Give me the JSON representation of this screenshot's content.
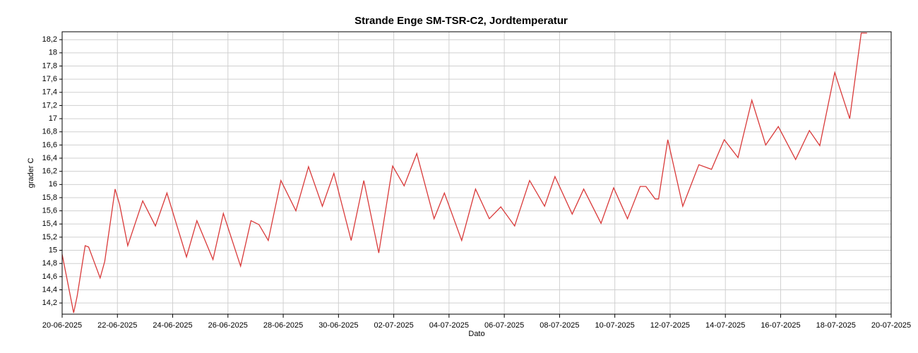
{
  "chart_data": {
    "type": "line",
    "title": "Strande Enge SM-TSR-C2, Jordtemperatur",
    "x_label": "Dato",
    "y_label": "grader C",
    "grid": true,
    "xlim": [
      "20-06-2025",
      "20-07-2025"
    ],
    "xticks": [
      "20-06-2025",
      "22-06-2025",
      "24-06-2025",
      "26-06-2025",
      "28-06-2025",
      "30-06-2025",
      "02-07-2025",
      "04-07-2025",
      "06-07-2025",
      "08-07-2025",
      "10-07-2025",
      "12-07-2025",
      "14-07-2025",
      "16-07-2025",
      "18-07-2025",
      "20-07-2025"
    ],
    "ylim": [
      14.03,
      18.32
    ],
    "yticks": [
      {
        "value": 14.2,
        "label": "14,2"
      },
      {
        "value": 14.4,
        "label": "14,4"
      },
      {
        "value": 14.6,
        "label": "14,6"
      },
      {
        "value": 14.8,
        "label": "14,8"
      },
      15,
      {
        "value": 15.2,
        "label": "15,2"
      },
      {
        "value": 15.4,
        "label": "15,4"
      },
      {
        "value": 15.6,
        "label": "15,6"
      },
      {
        "value": 15.8,
        "label": "15,8"
      },
      16,
      {
        "value": 16.2,
        "label": "16,2"
      },
      {
        "value": 16.4,
        "label": "16,4"
      },
      {
        "value": 16.6,
        "label": "16,6"
      },
      {
        "value": 16.8,
        "label": "16,8"
      },
      17,
      {
        "value": 17.2,
        "label": "17,2"
      },
      {
        "value": 17.4,
        "label": "17,4"
      },
      {
        "value": 17.6,
        "label": "17,6"
      },
      {
        "value": 17.8,
        "label": "17,8"
      },
      18,
      {
        "value": 18.2,
        "label": "18,2"
      }
    ],
    "x": [
      "20-06-2025 00:00",
      "20-06-2025 10:00",
      "20-06-2025 13:00",
      "20-06-2025 20:00",
      "20-06-2025 23:00",
      "21-06-2025 09:00",
      "21-06-2025 13:00",
      "21-06-2025 22:00",
      "22-06-2025 02:00",
      "22-06-2025 09:00",
      "22-06-2025 22:00",
      "23-06-2025 09:00",
      "23-06-2025 19:00",
      "24-06-2025 12:00",
      "24-06-2025 21:00",
      "25-06-2025 11:00",
      "25-06-2025 20:00",
      "26-06-2025 11:00",
      "26-06-2025 20:00",
      "27-06-2025 03:00",
      "27-06-2025 11:00",
      "27-06-2025 22:00",
      "28-06-2025 11:00",
      "28-06-2025 22:00",
      "29-06-2025 10:00",
      "29-06-2025 20:00",
      "30-06-2025 11:00",
      "30-06-2025 22:00",
      "01-07-2025 11:00",
      "01-07-2025 23:00",
      "02-07-2025 09:00",
      "02-07-2025 20:00",
      "03-07-2025 11:00",
      "03-07-2025 20:00",
      "04-07-2025 11:00",
      "04-07-2025 23:00",
      "05-07-2025 11:00",
      "05-07-2025 21:00",
      "06-07-2025 09:00",
      "06-07-2025 22:00",
      "07-07-2025 11:00",
      "07-07-2025 20:00",
      "08-07-2025 11:00",
      "08-07-2025 21:00",
      "09-07-2025 12:00",
      "09-07-2025 23:00",
      "10-07-2025 11:00",
      "10-07-2025 22:00",
      "11-07-2025 03:00",
      "11-07-2025 11:00",
      "11-07-2025 14:00",
      "11-07-2025 22:00",
      "12-07-2025 11:00",
      "13-07-2025 01:00",
      "13-07-2025 12:00",
      "13-07-2025 23:00",
      "14-07-2025 11:00",
      "14-07-2025 23:00",
      "15-07-2025 11:00",
      "15-07-2025 22:00",
      "16-07-2025 13:00",
      "17-07-2025 01:00",
      "17-07-2025 10:00",
      "17-07-2025 23:00",
      "18-07-2025 12:00",
      "18-07-2025 22:00",
      "19-07-2025 03:00"
    ],
    "series": [
      {
        "name": "Jordtemperatur",
        "color": "#d93a3a",
        "values": [
          14.94,
          14.05,
          14.3,
          15.07,
          15.05,
          14.58,
          14.83,
          15.93,
          15.69,
          15.07,
          15.75,
          15.37,
          15.87,
          14.9,
          15.45,
          14.86,
          15.56,
          14.76,
          15.45,
          15.39,
          15.15,
          16.06,
          15.6,
          16.27,
          15.67,
          16.17,
          15.15,
          16.06,
          14.96,
          16.28,
          15.98,
          16.47,
          15.48,
          15.87,
          15.15,
          15.93,
          15.48,
          15.66,
          15.37,
          16.06,
          15.67,
          16.12,
          15.55,
          15.93,
          15.41,
          15.95,
          15.48,
          15.97,
          15.97,
          15.78,
          15.78,
          16.68,
          15.67,
          16.3,
          16.23,
          16.68,
          16.41,
          17.28,
          16.6,
          16.88,
          16.38,
          16.82,
          16.59,
          17.7,
          17.0,
          18.3,
          18.3
        ]
      }
    ]
  }
}
